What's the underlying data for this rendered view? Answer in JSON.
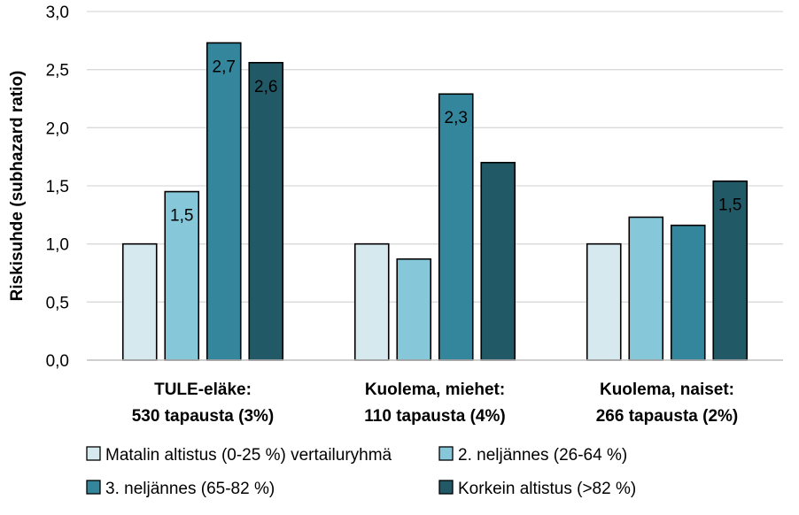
{
  "chart_data": {
    "type": "bar",
    "ylabel": "Riskisuhde (subhazard ratio)",
    "ylim": [
      0,
      3.0
    ],
    "yticks": [
      "0,0",
      "0,5",
      "1,0",
      "1,5",
      "2,0",
      "2,5",
      "3,0"
    ],
    "ytick_values": [
      0,
      0.5,
      1.0,
      1.5,
      2.0,
      2.5,
      3.0
    ],
    "grid": true,
    "legend_position": "bottom",
    "categories": [
      {
        "line1": "TULE-eläke:",
        "line2": "530 tapausta (3%)"
      },
      {
        "line1": "Kuolema, miehet:",
        "line2": "110 tapausta (4%)"
      },
      {
        "line1": "Kuolema, naiset:",
        "line2": "266 tapausta (2%)"
      }
    ],
    "series": [
      {
        "name": "Matalin altistus (0-25 %) vertailuryhmä",
        "color": "#d6e9ef",
        "values": [
          1.0,
          1.0,
          1.0
        ],
        "labels": [
          "",
          "",
          ""
        ]
      },
      {
        "name": "2. neljännes (26-64 %)",
        "color": "#86c8da",
        "values": [
          1.45,
          0.87,
          1.23
        ],
        "labels": [
          "1,5",
          "",
          ""
        ]
      },
      {
        "name": "3. neljännes (65-82 %)",
        "color": "#33869c",
        "values": [
          2.73,
          2.29,
          1.16
        ],
        "labels": [
          "2,7",
          "2,3",
          ""
        ]
      },
      {
        "name": "Korkein altistus (>82 %)",
        "color": "#215966",
        "values": [
          2.56,
          1.7,
          1.54
        ],
        "labels": [
          "2,6",
          "",
          "1,5"
        ]
      }
    ]
  }
}
